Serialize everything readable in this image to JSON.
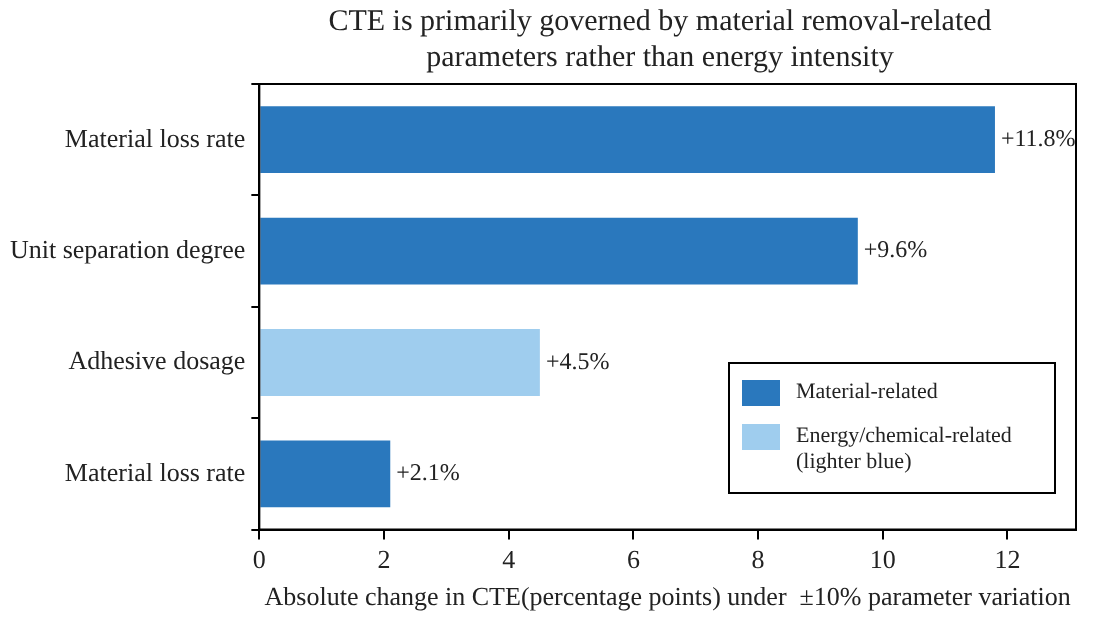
{
  "chart_data": {
    "type": "bar",
    "orientation": "horizontal",
    "stacked": true,
    "title": "CTE is primarily governed by material removal-related parameters rather than energy intensity",
    "xlabel": "Absolute change in CTE(percentage points) under  ±10% parameter variation",
    "categories": [
      "Material loss rate",
      "Unit separation degree",
      "Adhesive dosage",
      "Material loss rate"
    ],
    "series": [
      {
        "name": "Material-related",
        "color": "#2a78bd",
        "values": [
          11.8,
          9.6,
          null,
          2.1
        ],
        "value_labels": [
          "+11.8%",
          "+9.6%",
          null,
          "+2.1%"
        ]
      },
      {
        "name": "Energy/chemical-related (lighter blue)",
        "color": "#9fcdee",
        "values": [
          null,
          null,
          4.5,
          null
        ],
        "value_labels": [
          null,
          null,
          "+4.5%",
          null
        ]
      }
    ],
    "xlim": [
      0,
      13.1
    ],
    "xticks": [
      0,
      2,
      4,
      6,
      8,
      10,
      12
    ],
    "legend": "bottom right"
  }
}
